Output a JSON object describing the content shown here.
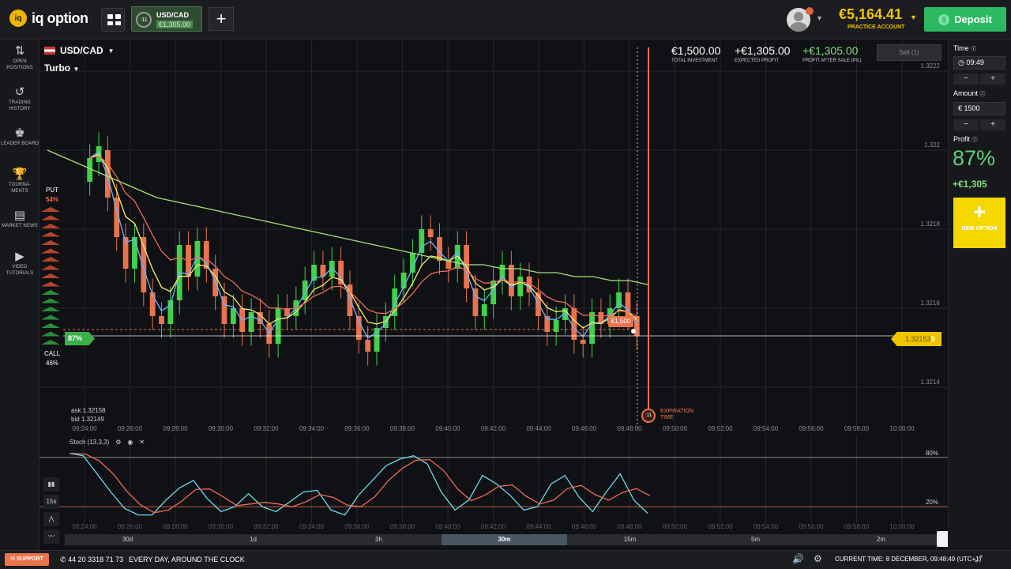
{
  "brand": {
    "name": "iq option",
    "badge": "iq"
  },
  "tabs": [
    {
      "asset": "USD/CAD",
      "amount": "€1,305.00",
      "timer": ":11"
    }
  ],
  "account": {
    "balance": "€5,164.41",
    "type": "PRACTICE ACCOUNT",
    "deposit_label": "Deposit",
    "notifications": "1"
  },
  "sidebar": {
    "items": [
      {
        "icon": "open-positions-icon",
        "label": "OPEN POSITIONS",
        "glyph": "⇅"
      },
      {
        "icon": "history-icon",
        "label": "TRADING HISTORY",
        "glyph": "↺"
      },
      {
        "icon": "leaderboard-icon",
        "label": "LEADER BOARD",
        "glyph": "♚"
      },
      {
        "icon": "trophy-icon",
        "label": "TOURNA- MENTS",
        "glyph": "🏆"
      },
      {
        "icon": "news-icon",
        "label": "MARKET NEWS",
        "glyph": "▤"
      },
      {
        "icon": "play-icon",
        "label": "VIDEO TUTORIALS",
        "glyph": "▶"
      }
    ]
  },
  "chart": {
    "asset": "USD/CAD",
    "mode": "Turbo",
    "stats": [
      {
        "value": "€1,500.00",
        "label": "TOTAL INVESTMENT",
        "color": "#ffffff"
      },
      {
        "value": "+€1,305.00",
        "label": "EXPECTED PROFIT",
        "color": "#ffffff"
      },
      {
        "value": "+€1,305.00",
        "label": "PROFIT AFTER SALE (P/L)",
        "color": "#7fe07f"
      }
    ],
    "sell_label": "Sell (1)",
    "put_label": "PUT",
    "put_pct": "54%",
    "call_label": "CALL",
    "call_pct": "46%",
    "payout": "87%",
    "ask": "ask 1.32158",
    "bid": "bid 1.32149",
    "current_price": "1.32153",
    "current_price_suffix": "5",
    "trade_amount": "€1,500",
    "expiration_timer": ":11",
    "expiration_label": "EXPIRATION TIME",
    "y_ticks": [
      "1.3222",
      "1.322",
      "1.3218",
      "1.3216",
      "1.3214"
    ],
    "x_ticks": [
      "09:24:00",
      "09:26:00",
      "09:28:00",
      "09:30:00",
      "09:32:00",
      "09:34:00",
      "09:36:00",
      "09:38:00",
      "09:40:00",
      "09:42:00",
      "09:44:00",
      "09:46:00",
      "09:48:00",
      "09:50:00",
      "09:52:00",
      "09:54:00",
      "09:56:00",
      "09:58:00",
      "10:00:00"
    ]
  },
  "chart_data": {
    "type": "candlestick",
    "y_range": [
      1.32132,
      1.32226
    ],
    "candles": [
      [
        1.32192,
        1.32198
      ],
      [
        1.32197,
        1.32201
      ],
      [
        1.322,
        1.32188
      ],
      [
        1.32188,
        1.32178
      ],
      [
        1.32178,
        1.3217
      ],
      [
        1.3217,
        1.32178
      ],
      [
        1.32178,
        1.32164
      ],
      [
        1.32164,
        1.32158
      ],
      [
        1.32158,
        1.32156
      ],
      [
        1.32156,
        1.32162
      ],
      [
        1.32162,
        1.32176
      ],
      [
        1.32176,
        1.32168
      ],
      [
        1.32168,
        1.32177
      ],
      [
        1.32177,
        1.3217
      ],
      [
        1.3217,
        1.32163
      ],
      [
        1.32163,
        1.32156
      ],
      [
        1.32156,
        1.3216
      ],
      [
        1.3216,
        1.32154
      ],
      [
        1.32154,
        1.32159
      ],
      [
        1.32159,
        1.32156
      ],
      [
        1.32156,
        1.32151
      ],
      [
        1.32151,
        1.3216
      ],
      [
        1.3216,
        1.32158
      ],
      [
        1.32158,
        1.32162
      ],
      [
        1.32162,
        1.32167
      ],
      [
        1.32167,
        1.32171
      ],
      [
        1.32171,
        1.32168
      ],
      [
        1.32168,
        1.32172
      ],
      [
        1.32172,
        1.32166
      ],
      [
        1.32166,
        1.32158
      ],
      [
        1.32158,
        1.32152
      ],
      [
        1.32152,
        1.32149
      ],
      [
        1.32149,
        1.32155
      ],
      [
        1.32155,
        1.32158
      ],
      [
        1.32158,
        1.32165
      ],
      [
        1.32165,
        1.32169
      ],
      [
        1.32169,
        1.32174
      ],
      [
        1.32174,
        1.3218
      ],
      [
        1.3218,
        1.32178
      ],
      [
        1.32178,
        1.32172
      ],
      [
        1.32172,
        1.3217
      ],
      [
        1.3217,
        1.32176
      ],
      [
        1.32176,
        1.32165
      ],
      [
        1.32165,
        1.32158
      ],
      [
        1.32158,
        1.32161
      ],
      [
        1.32161,
        1.32167
      ],
      [
        1.32167,
        1.32171
      ],
      [
        1.32171,
        1.32163
      ],
      [
        1.32163,
        1.32168
      ],
      [
        1.32168,
        1.32164
      ],
      [
        1.32164,
        1.32158
      ],
      [
        1.32158,
        1.32154
      ],
      [
        1.32154,
        1.32157
      ],
      [
        1.32157,
        1.3216
      ],
      [
        1.3216,
        1.32152
      ],
      [
        1.32152,
        1.32151
      ],
      [
        1.32151,
        1.32159
      ],
      [
        1.32159,
        1.32156
      ],
      [
        1.32156,
        1.3216
      ],
      [
        1.3216,
        1.32164
      ],
      [
        1.32164,
        1.32158
      ],
      [
        1.32158,
        1.32153
      ]
    ],
    "ma_long": [
      1.322,
      1.32198,
      1.32196,
      1.32194,
      1.32192,
      1.3219,
      1.32188,
      1.32187,
      1.32186,
      1.32185,
      1.32184,
      1.32183,
      1.32182,
      1.32181,
      1.3218,
      1.32179,
      1.32178,
      1.32177,
      1.32176,
      1.32175,
      1.32174,
      1.32173,
      1.32172,
      1.32171,
      1.32171,
      1.3217,
      1.3217,
      1.32169,
      1.32169,
      1.32168,
      1.32168,
      1.32167,
      1.32167,
      1.32166
    ],
    "stoch_k": [
      85,
      82,
      60,
      38,
      18,
      10,
      10,
      28,
      43,
      52,
      30,
      14,
      20,
      36,
      20,
      14,
      26,
      38,
      40,
      16,
      10,
      34,
      52,
      70,
      78,
      82,
      72,
      38,
      16,
      28,
      58,
      48,
      34,
      16,
      20,
      48,
      58,
      32,
      14,
      38,
      60,
      28,
      12
    ],
    "stoch_levels": [
      "80%",
      "20%"
    ],
    "stoch_label": "Stoch (13,3,3)"
  },
  "timeframes": [
    {
      "label": "30d",
      "active": false
    },
    {
      "label": "1d",
      "active": false
    },
    {
      "label": "3h",
      "active": false
    },
    {
      "label": "30m",
      "active": true
    },
    {
      "label": "15m",
      "active": false
    },
    {
      "label": "5m",
      "active": false
    },
    {
      "label": "2m",
      "active": false
    }
  ],
  "osc_tools": [
    "chart-type-icon",
    "15s",
    "draw-icon",
    "indicator-icon"
  ],
  "right_panel": {
    "time_label": "Time",
    "time_value": "09:49",
    "amount_label": "Amount",
    "amount_value": "€  1500",
    "profit_label": "Profit",
    "profit_pct": "87%",
    "profit_value": "+€1,305",
    "new_option_label": "NEW OPTION",
    "minus": "−",
    "plus": "+"
  },
  "footer": {
    "support_label": "SUPPORT",
    "phone": "44 20 3318 71 73",
    "slogan": "EVERY DAY, AROUND THE CLOCK",
    "current_time": "CURRENT TIME: 8 DECEMBER, 09:48:49 (UTC+1)"
  }
}
